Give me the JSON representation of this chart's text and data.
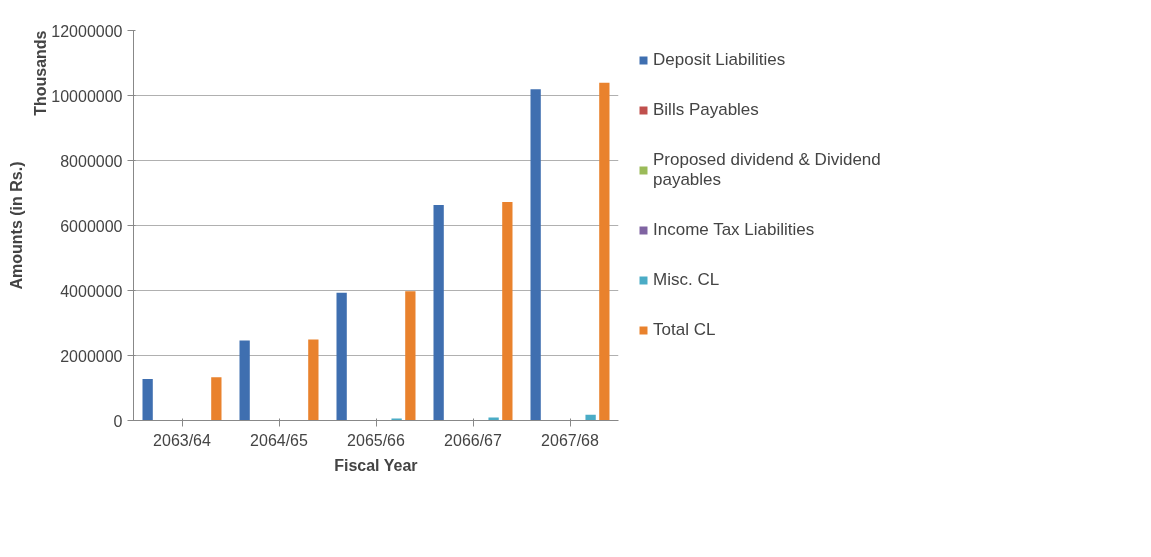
{
  "chart_data": {
    "type": "bar",
    "xlabel": "Fiscal Year",
    "ylabel": "Amounts (in Rs.)",
    "annotations": [
      "Thousands"
    ],
    "categories": [
      "2063/64",
      "2064/65",
      "2065/66",
      "2066/67",
      "2067/68"
    ],
    "series": [
      {
        "name": "Deposit Liabilities",
        "color": "#3f6fb0",
        "values": [
          1280000,
          2460000,
          3930000,
          6630000,
          10190000
        ]
      },
      {
        "name": "Bills Payables",
        "color": "#c0504d",
        "values": [
          0,
          0,
          0,
          0,
          0
        ]
      },
      {
        "name": "Proposed dividend & Dividend payables",
        "color": "#9bbb59",
        "values": [
          0,
          0,
          0,
          0,
          0
        ]
      },
      {
        "name": "Income Tax Liabilities",
        "color": "#8064a2",
        "values": [
          0,
          0,
          0,
          0,
          0
        ]
      },
      {
        "name": "Misc. CL",
        "color": "#4bacc6",
        "values": [
          null,
          null,
          60000,
          90000,
          180000
        ]
      },
      {
        "name": "Total CL",
        "color": "#e9822d",
        "values": [
          1330000,
          2490000,
          3980000,
          6720000,
          10390000
        ]
      }
    ],
    "ylim": [
      0,
      12000000
    ],
    "yticks": [
      0,
      2000000,
      4000000,
      6000000,
      8000000,
      10000000,
      12000000
    ],
    "grid": "y",
    "legend": "right"
  }
}
